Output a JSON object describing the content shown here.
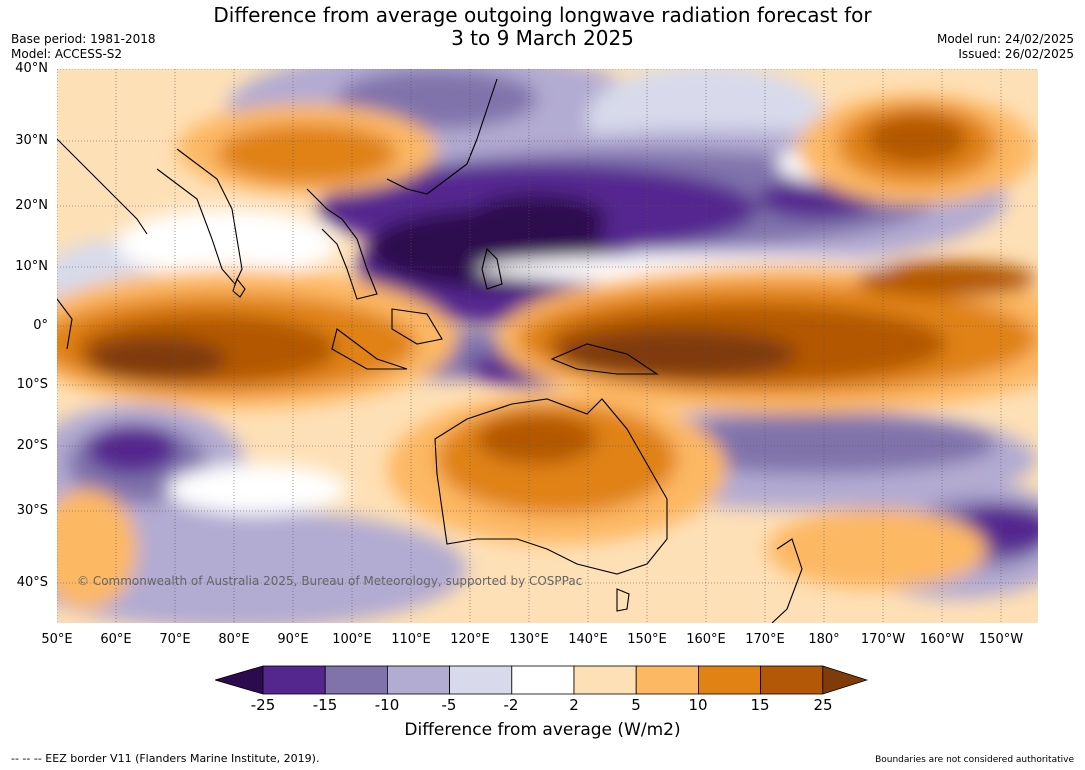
{
  "title_line1": "Difference from average outgoing longwave radiation forecast for",
  "title_line2": "3 to 9 March 2025",
  "base_period": "Base period: 1981-2018",
  "model": "Model: ACCESS-S2",
  "model_run": "Model run: 24/02/2025",
  "issued": "Issued: 26/02/2025",
  "copyright": "© Commonwealth of Australia 2025, Bureau of Meteorology, supported by COSPPac",
  "lat_ticks": [
    "40°N",
    "30°N",
    "20°N",
    "10°N",
    "0°",
    "10°S",
    "20°S",
    "30°S",
    "40°S"
  ],
  "lon_ticks": [
    "50°E",
    "60°E",
    "70°E",
    "80°E",
    "90°E",
    "100°E",
    "110°E",
    "120°E",
    "130°E",
    "140°E",
    "150°E",
    "160°E",
    "170°E",
    "180°",
    "170°W",
    "160°W",
    "150°W"
  ],
  "colorbar": {
    "ticks": [
      "-25",
      "-15",
      "-10",
      "-5",
      "-2",
      "2",
      "5",
      "10",
      "15",
      "25"
    ],
    "colors": [
      "#2d0a4f",
      "#54278f",
      "#8073ac",
      "#b2abd2",
      "#d8daeb",
      "#ffffff",
      "#fee0b6",
      "#fdb863",
      "#e08214",
      "#b35806",
      "#7f3b08"
    ],
    "label": "Difference from average (W/m2)"
  },
  "footer_left": "--  --  -- EEZ border V11 (Flanders Marine Institute, 2019).",
  "footer_right": "Boundaries are not considered authoritative"
}
